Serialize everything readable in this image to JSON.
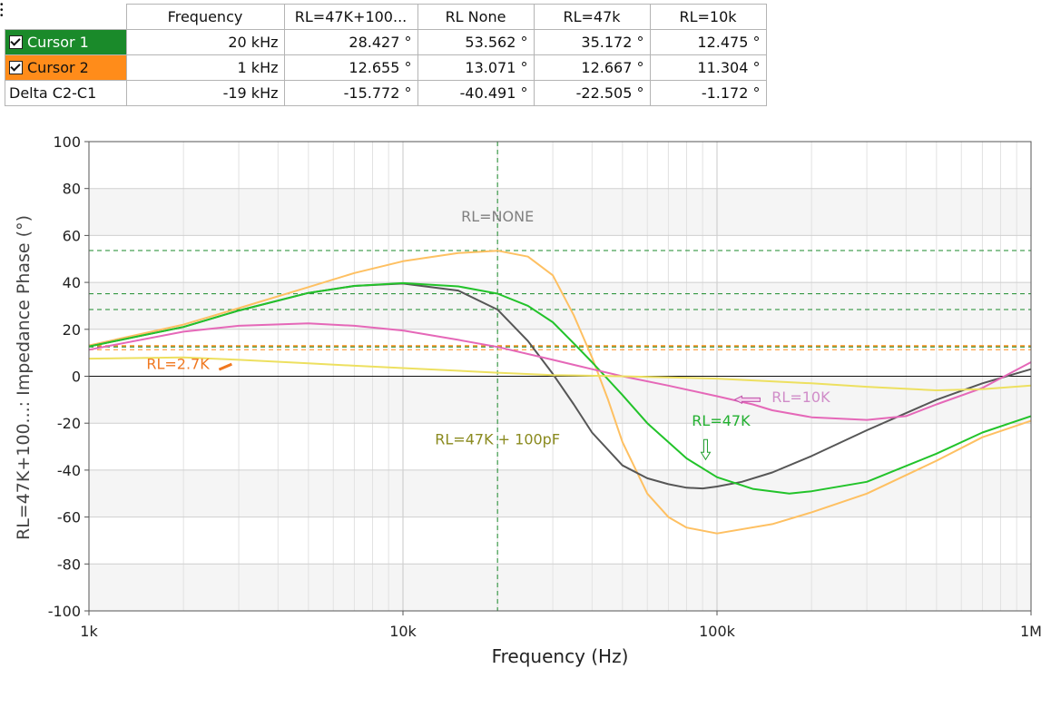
{
  "cursor_table": {
    "columns": [
      "Frequency",
      "RL=47K+100...",
      "RL None",
      "RL=47k",
      "RL=10k"
    ],
    "rows": [
      {
        "label": "Cursor 1",
        "checked": true,
        "color": "#1a8a2a",
        "values": [
          "20 kHz",
          "28.427 °",
          "53.562 °",
          "35.172 °",
          "12.475 °"
        ]
      },
      {
        "label": "Cursor 2",
        "checked": true,
        "color": "#ff8c1a",
        "values": [
          "1 kHz",
          "12.655 °",
          "13.071 °",
          "12.667 °",
          "11.304 °"
        ]
      },
      {
        "label": "Delta C2-C1",
        "checked": false,
        "color": "#ffffff",
        "values": [
          "-19 kHz",
          "-15.772 °",
          "-40.491 °",
          "-22.505 °",
          "-1.172 °"
        ]
      }
    ]
  },
  "chart_data": {
    "type": "line",
    "xlabel": "Frequency (Hz)",
    "ylabel": "RL=47K+100...: Impedance Phase (°)",
    "xscale": "log",
    "xlim": [
      1000,
      1000000
    ],
    "ylim": [
      -100,
      100
    ],
    "xticks": [
      1000,
      10000,
      100000,
      1000000
    ],
    "xtick_labels": [
      "1k",
      "10k",
      "100k",
      "1M"
    ],
    "yticks": [
      100,
      80,
      60,
      40,
      20,
      0,
      -20,
      -40,
      -60,
      -80,
      -100
    ],
    "ytick_labels": [
      "100",
      "80",
      "60",
      "40",
      "20",
      "0",
      "-20",
      "-40",
      "-60",
      "-80",
      "-100"
    ],
    "grid": true,
    "cursors": {
      "vertical_x": 20000,
      "horizontal_y": [
        53.562,
        35.172,
        28.427,
        13.071,
        12.667,
        12.655,
        12.475,
        11.304
      ],
      "horizontal_colors": [
        "#1a8a2a",
        "#1a8a2a",
        "#1a8a2a",
        "#ff8c1a",
        "#ff8c1a",
        "#ff8c1a",
        "#1a8a2a",
        "#ff8c1a"
      ]
    },
    "series": [
      {
        "color": "#fec062",
        "x": [
          1000,
          2000,
          3000,
          5000,
          7000,
          10000,
          15000,
          20000,
          25000,
          30000,
          35000,
          40000,
          45000,
          50000,
          60000,
          70000,
          80000,
          100000,
          150000,
          200000,
          300000,
          500000,
          700000,
          1000000
        ],
        "y": [
          13.1,
          22,
          29,
          38,
          44,
          49,
          52.5,
          53.5,
          51,
          43,
          26,
          8,
          -10,
          -28,
          -50,
          -60,
          -64.5,
          -67,
          -63,
          -58,
          -50,
          -36,
          -26,
          -19
        ]
      },
      {
        "color": "#565656",
        "x": [
          1000,
          2000,
          3000,
          5000,
          7000,
          10000,
          15000,
          20000,
          25000,
          30000,
          35000,
          40000,
          50000,
          60000,
          70000,
          80000,
          90000,
          100000,
          120000,
          150000,
          200000,
          300000,
          500000,
          700000,
          1000000
        ],
        "y": [
          12.7,
          21,
          28,
          35.5,
          38.5,
          39.5,
          36.5,
          28.4,
          15,
          1,
          -12,
          -24,
          -38,
          -43.5,
          -46,
          -47.5,
          -47.8,
          -47,
          -45,
          -41,
          -34,
          -23,
          -10,
          -3,
          3
        ]
      },
      {
        "color": "#22c32a",
        "x": [
          1000,
          2000,
          3000,
          5000,
          7000,
          10000,
          15000,
          20000,
          25000,
          30000,
          35000,
          40000,
          50000,
          60000,
          80000,
          100000,
          130000,
          170000,
          200000,
          300000,
          500000,
          700000,
          1000000
        ],
        "y": [
          12.7,
          21,
          28,
          35.5,
          38.5,
          39.7,
          38.3,
          35.2,
          30,
          23,
          14,
          6,
          -8,
          -20,
          -35,
          -43,
          -48,
          -50,
          -49,
          -45,
          -33,
          -24,
          -17
        ]
      },
      {
        "color": "#e568b8",
        "x": [
          1000,
          2000,
          3000,
          5000,
          7000,
          10000,
          15000,
          20000,
          30000,
          40000,
          50000,
          70000,
          100000,
          130000,
          150000,
          200000,
          300000,
          400000,
          500000,
          700000,
          1000000
        ],
        "y": [
          11.3,
          19,
          21.5,
          22.5,
          21.5,
          19.5,
          15.5,
          12.5,
          7,
          3,
          0,
          -4,
          -8.5,
          -12,
          -14.5,
          -17.5,
          -18.6,
          -17,
          -12,
          -5,
          6
        ]
      },
      {
        "color": "#ede060",
        "x": [
          1000,
          2000,
          3000,
          5000,
          7000,
          10000,
          20000,
          30000,
          50000,
          100000,
          200000,
          300000,
          500000,
          700000,
          1000000
        ],
        "y": [
          7.5,
          8,
          7,
          5.5,
          4.5,
          3.5,
          1.5,
          0.5,
          0,
          -1,
          -3,
          -4.5,
          -6,
          -5.5,
          -4
        ]
      }
    ],
    "annotations": [
      {
        "text": "RL=NONE",
        "color": "#808080",
        "x": 20000,
        "y": 66
      },
      {
        "text": "RL=2.7K",
        "color": "#f07820",
        "x": 1920,
        "y": 3
      },
      {
        "text": "RL=10K",
        "color": "#d08cc8",
        "x": 185000,
        "y": -11
      },
      {
        "text": "RL=47K",
        "color": "#22b030",
        "x": 103000,
        "y": -21
      },
      {
        "text": "RL=47K + 100pF",
        "color": "#8a8a1e",
        "x": 20000,
        "y": -29
      }
    ]
  }
}
